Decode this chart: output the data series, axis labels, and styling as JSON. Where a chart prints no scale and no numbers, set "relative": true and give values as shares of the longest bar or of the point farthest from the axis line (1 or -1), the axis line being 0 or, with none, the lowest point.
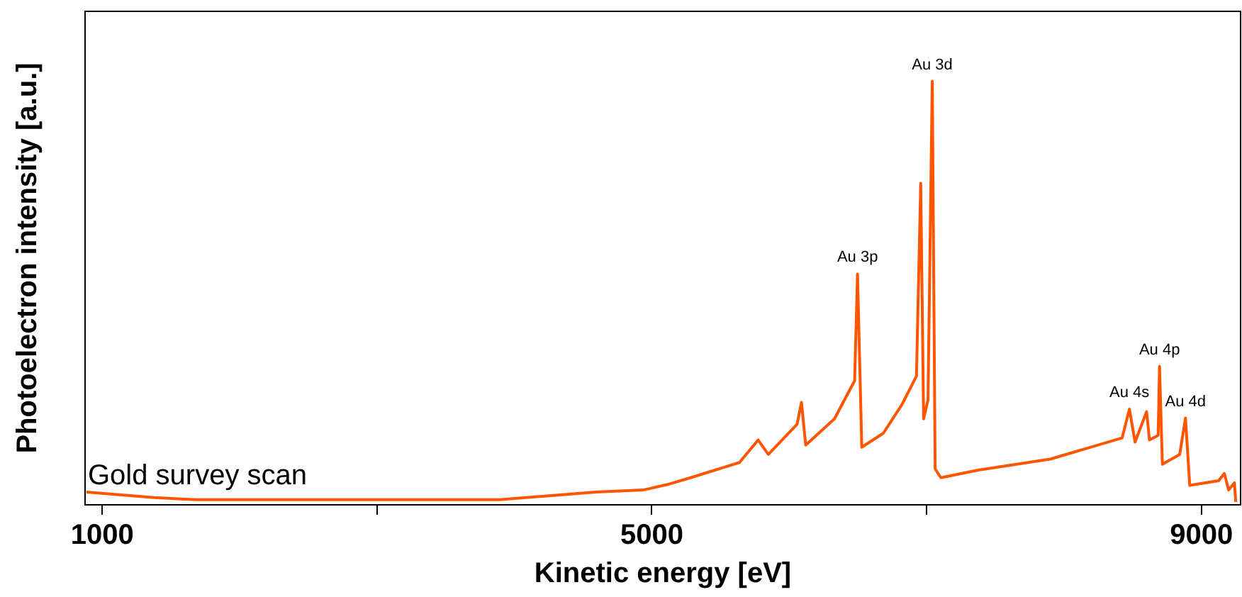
{
  "chart_data": {
    "type": "line",
    "xlabel": "Kinetic energy [eV]",
    "ylabel": "Photoelectron intensity [a.u.]",
    "relative": true,
    "xlim": [
      875,
      9285
    ],
    "xticks": [
      1000,
      {
        "value": 3000,
        "label": null
      },
      5000,
      {
        "value": 7000,
        "label": null
      },
      9000
    ],
    "grid": false,
    "legend": false,
    "marker": "none",
    "line_style": "solid",
    "x": [
      885,
      1377,
      1691,
      3890,
      4235,
      4591,
      4937,
      5115,
      5282,
      5638,
      5774,
      5848,
      6057,
      6089,
      6120,
      6329,
      6476,
      6497,
      6528,
      6685,
      6821,
      6926,
      6957,
      6978,
      7010,
      7041,
      7062,
      7104,
      7376,
      7900,
      8423,
      8476,
      8517,
      8601,
      8622,
      8685,
      8695,
      8716,
      8842,
      8884,
      8915,
      9125,
      9167,
      9198,
      9240,
      9250
    ],
    "series": [
      {
        "color": "#ff5500",
        "values": [
          0.03,
          0.017,
          0.012,
          0.012,
          0.021,
          0.03,
          0.035,
          0.048,
          0.064,
          0.1,
          0.153,
          0.119,
          0.19,
          0.242,
          0.141,
          0.203,
          0.293,
          0.545,
          0.136,
          0.169,
          0.237,
          0.304,
          0.759,
          0.203,
          0.248,
          1,
          0.085,
          0.064,
          0.082,
          0.108,
          0.158,
          0.226,
          0.148,
          0.22,
          0.153,
          0.164,
          0.327,
          0.096,
          0.119,
          0.205,
          0.046,
          0.057,
          0.074,
          0.035,
          0.052,
          0.007
        ]
      }
    ],
    "annotations": [
      "Gold survey scan",
      {
        "text": "Au 3p",
        "x": 6497,
        "y": 0.545
      },
      {
        "text": "Au 3d",
        "x": 7041,
        "y": 1
      },
      {
        "text": "Au 4s",
        "x": 8476,
        "y": 0.226
      },
      {
        "text": "Au 4p",
        "x": 8695,
        "y": 0.327
      },
      {
        "text": "Au 4d",
        "x": 8884,
        "y": 0.205
      }
    ]
  }
}
